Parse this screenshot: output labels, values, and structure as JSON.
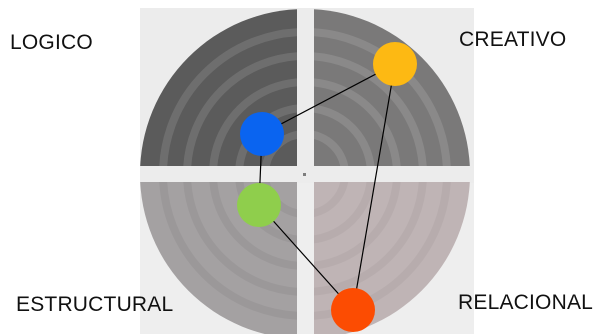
{
  "quadrants": {
    "top_left": {
      "label": "LOGICO",
      "color": "#5b5b5b"
    },
    "top_right": {
      "label": "CREATIVO",
      "color": "#7a7979"
    },
    "bottom_left": {
      "label": "ESTRUCTURAL",
      "color": "#a4a1a2"
    },
    "bottom_right": {
      "label": "RELACIONAL",
      "color": "#bfb4b5"
    }
  },
  "nodes": [
    {
      "quadrant": "top_left",
      "color": "#0a64f0"
    },
    {
      "quadrant": "top_right",
      "color": "#fdb913"
    },
    {
      "quadrant": "bottom_right",
      "color": "#fc4c02"
    },
    {
      "quadrant": "bottom_left",
      "color": "#8fce4c"
    }
  ],
  "connections": [
    [
      "top_left",
      "top_right"
    ],
    [
      "top_right",
      "bottom_right"
    ],
    [
      "bottom_right",
      "bottom_left"
    ],
    [
      "bottom_left",
      "top_left"
    ]
  ]
}
